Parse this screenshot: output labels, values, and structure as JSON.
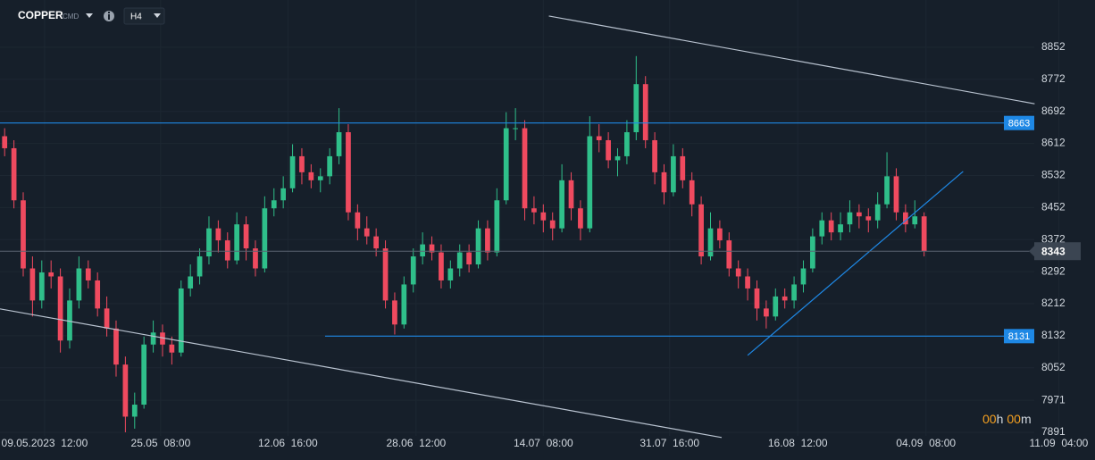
{
  "chart_data": {
    "type": "candlestick",
    "symbol": "COPPER",
    "market": "CMD",
    "timeframe": "H4",
    "up_color": "#2fbf8a",
    "down_color": "#ef4a5f",
    "grid": true,
    "ohlc": [
      [
        8630,
        8650,
        8580,
        8600
      ],
      [
        8600,
        8620,
        8450,
        8470
      ],
      [
        8470,
        8490,
        8280,
        8300
      ],
      [
        8300,
        8330,
        8180,
        8220
      ],
      [
        8220,
        8320,
        8200,
        8290
      ],
      [
        8290,
        8320,
        8250,
        8280
      ],
      [
        8280,
        8300,
        8090,
        8120
      ],
      [
        8120,
        8250,
        8100,
        8220
      ],
      [
        8220,
        8330,
        8200,
        8300
      ],
      [
        8300,
        8320,
        8250,
        8270
      ],
      [
        8270,
        8290,
        8180,
        8200
      ],
      [
        8200,
        8230,
        8130,
        8150
      ],
      [
        8150,
        8170,
        8030,
        8060
      ],
      [
        8060,
        8080,
        7891,
        7930
      ],
      [
        7930,
        7990,
        7900,
        7960
      ],
      [
        7960,
        8130,
        7950,
        8110
      ],
      [
        8110,
        8170,
        8090,
        8140
      ],
      [
        8140,
        8160,
        8080,
        8110
      ],
      [
        8110,
        8130,
        8060,
        8090
      ],
      [
        8090,
        8270,
        8080,
        8250
      ],
      [
        8250,
        8310,
        8230,
        8280
      ],
      [
        8280,
        8350,
        8260,
        8330
      ],
      [
        8330,
        8430,
        8310,
        8400
      ],
      [
        8400,
        8420,
        8340,
        8370
      ],
      [
        8370,
        8390,
        8300,
        8320
      ],
      [
        8320,
        8440,
        8310,
        8410
      ],
      [
        8410,
        8430,
        8320,
        8350
      ],
      [
        8350,
        8370,
        8280,
        8300
      ],
      [
        8300,
        8480,
        8290,
        8450
      ],
      [
        8450,
        8500,
        8430,
        8470
      ],
      [
        8470,
        8530,
        8450,
        8500
      ],
      [
        8500,
        8610,
        8490,
        8580
      ],
      [
        8580,
        8600,
        8510,
        8540
      ],
      [
        8540,
        8560,
        8500,
        8520
      ],
      [
        8520,
        8550,
        8490,
        8530
      ],
      [
        8530,
        8600,
        8510,
        8580
      ],
      [
        8580,
        8700,
        8560,
        8640
      ],
      [
        8640,
        8660,
        8420,
        8440
      ],
      [
        8440,
        8460,
        8370,
        8400
      ],
      [
        8400,
        8430,
        8360,
        8380
      ],
      [
        8380,
        8400,
        8330,
        8350
      ],
      [
        8350,
        8370,
        8200,
        8220
      ],
      [
        8220,
        8240,
        8135,
        8160
      ],
      [
        8160,
        8280,
        8150,
        8260
      ],
      [
        8260,
        8350,
        8240,
        8330
      ],
      [
        8330,
        8390,
        8310,
        8360
      ],
      [
        8360,
        8380,
        8320,
        8340
      ],
      [
        8340,
        8360,
        8250,
        8270
      ],
      [
        8270,
        8320,
        8250,
        8300
      ],
      [
        8300,
        8360,
        8280,
        8340
      ],
      [
        8340,
        8360,
        8290,
        8310
      ],
      [
        8310,
        8420,
        8300,
        8400
      ],
      [
        8400,
        8420,
        8320,
        8340
      ],
      [
        8340,
        8500,
        8330,
        8470
      ],
      [
        8470,
        8690,
        8460,
        8650
      ],
      [
        8650,
        8700,
        8620,
        8650
      ],
      [
        8650,
        8670,
        8420,
        8450
      ],
      [
        8450,
        8480,
        8410,
        8440
      ],
      [
        8440,
        8460,
        8390,
        8420
      ],
      [
        8420,
        8440,
        8370,
        8400
      ],
      [
        8400,
        8560,
        8390,
        8520
      ],
      [
        8520,
        8540,
        8420,
        8450
      ],
      [
        8450,
        8470,
        8370,
        8400
      ],
      [
        8400,
        8680,
        8390,
        8630
      ],
      [
        8630,
        8660,
        8590,
        8620
      ],
      [
        8620,
        8640,
        8550,
        8570
      ],
      [
        8570,
        8600,
        8530,
        8580
      ],
      [
        8580,
        8670,
        8560,
        8640
      ],
      [
        8640,
        8830,
        8620,
        8760
      ],
      [
        8760,
        8780,
        8600,
        8620
      ],
      [
        8620,
        8640,
        8510,
        8540
      ],
      [
        8540,
        8560,
        8460,
        8490
      ],
      [
        8490,
        8610,
        8480,
        8580
      ],
      [
        8580,
        8600,
        8500,
        8520
      ],
      [
        8520,
        8540,
        8430,
        8460
      ],
      [
        8460,
        8480,
        8310,
        8330
      ],
      [
        8330,
        8440,
        8320,
        8400
      ],
      [
        8400,
        8420,
        8350,
        8370
      ],
      [
        8370,
        8390,
        8280,
        8300
      ],
      [
        8300,
        8320,
        8250,
        8280
      ],
      [
        8280,
        8300,
        8220,
        8250
      ],
      [
        8250,
        8270,
        8170,
        8200
      ],
      [
        8200,
        8220,
        8150,
        8180
      ],
      [
        8180,
        8250,
        8170,
        8230
      ],
      [
        8230,
        8250,
        8200,
        8220
      ],
      [
        8220,
        8280,
        8200,
        8260
      ],
      [
        8260,
        8320,
        8240,
        8300
      ],
      [
        8300,
        8400,
        8290,
        8380
      ],
      [
        8380,
        8440,
        8360,
        8420
      ],
      [
        8420,
        8440,
        8370,
        8390
      ],
      [
        8390,
        8440,
        8370,
        8410
      ],
      [
        8410,
        8470,
        8390,
        8440
      ],
      [
        8440,
        8460,
        8400,
        8430
      ],
      [
        8430,
        8450,
        8390,
        8420
      ],
      [
        8420,
        8490,
        8400,
        8460
      ],
      [
        8460,
        8590,
        8450,
        8530
      ],
      [
        8530,
        8550,
        8420,
        8440
      ],
      [
        8440,
        8460,
        8390,
        8410
      ],
      [
        8410,
        8470,
        8400,
        8430
      ],
      [
        8430,
        8440,
        8330,
        8343
      ]
    ],
    "xlim": [
      -0.5,
      117.4
    ],
    "ylim": [
      7882,
      8970
    ],
    "yticks": [
      7891,
      7971,
      8052,
      8132,
      8212,
      8292,
      8372,
      8452,
      8532,
      8612,
      8692,
      8772,
      8852
    ],
    "xticks": [
      {
        "value": 4.3,
        "label": "09.05.2023  12:00"
      },
      {
        "value": 16.8,
        "label": "25.05  08:00"
      },
      {
        "value": 30.5,
        "label": "12.06  16:00"
      },
      {
        "value": 44.3,
        "label": "28.06  12:00"
      },
      {
        "value": 58,
        "label": "14.07  08:00"
      },
      {
        "value": 71.6,
        "label": "31.07  16:00"
      },
      {
        "value": 85.4,
        "label": "16.08  12:00"
      },
      {
        "value": 99.2,
        "label": "04.09  08:00"
      },
      {
        "value": 113.5,
        "label": "11.09  04:00"
      }
    ],
    "hlines": [
      {
        "value": 8663,
        "start": -0.5,
        "color": "#1e88e5"
      },
      {
        "value": 8131,
        "start": 34.5,
        "color": "#1e88e5"
      }
    ],
    "last_price": 8343,
    "trendlines": [
      {
        "x": [
          58.6,
          110.9
        ],
        "y": [
          8930,
          8711
        ],
        "color": "#b9c3d0"
      },
      {
        "x": [
          -0.5,
          77.2
        ],
        "y": [
          8199,
          7878
        ],
        "color": "#b9c3d0"
      },
      {
        "x": [
          80,
          103.2
        ],
        "y": [
          8083,
          8542
        ],
        "color": "#1e88e5"
      }
    ],
    "timer": {
      "hours": "00",
      "h": "h",
      "minutes": "00",
      "m": "m"
    }
  }
}
